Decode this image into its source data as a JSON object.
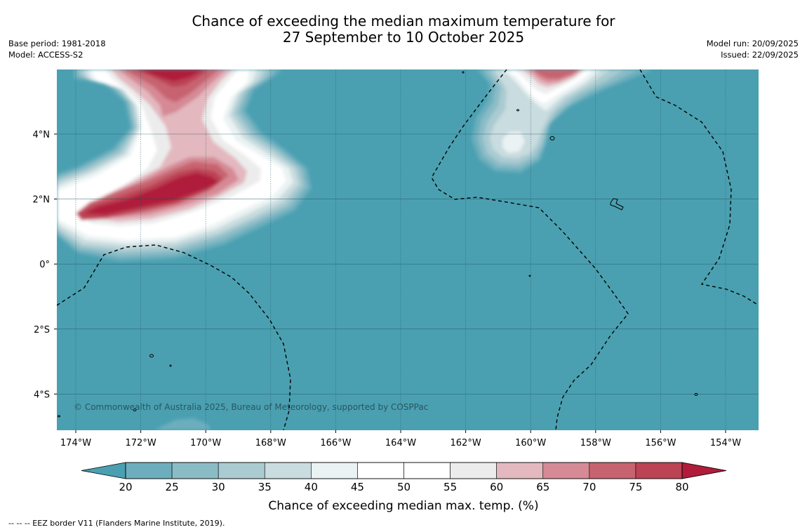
{
  "title": {
    "line1": "Chance of exceeding the median maximum temperature for",
    "line2": "27 September to 10 October 2025"
  },
  "meta_left": [
    "Base period: 1981-2018",
    "Model: ACCESS-S2"
  ],
  "meta_right": [
    "Model run: 20/09/2025",
    "Issued: 22/09/2025"
  ],
  "map": {
    "background_color": "#4aa0b1",
    "lon_ticks": [
      "174°W",
      "172°W",
      "170°W",
      "168°W",
      "166°W",
      "164°W",
      "162°W",
      "160°W",
      "158°W",
      "156°W",
      "154°W"
    ],
    "lat_ticks": [
      "4°N",
      "2°N",
      "0°",
      "2°S",
      "4°S"
    ],
    "credit": "© Commonwealth of Australia 2025, Bureau of Meteorology, supported by COSPPac"
  },
  "colorbar": {
    "ticks": [
      "20",
      "25",
      "30",
      "35",
      "40",
      "45",
      "50",
      "55",
      "60",
      "65",
      "70",
      "75",
      "80"
    ],
    "colors": [
      "#4aa0b1",
      "#6caebd",
      "#8abcc6",
      "#a9cbd1",
      "#c9dcdf",
      "#eaf2f3",
      "#ffffff",
      "#ffffff",
      "#ececec",
      "#e3b8bf",
      "#d58a95",
      "#c7636f",
      "#bb4354",
      "#b01c3a"
    ],
    "label": "Chance of exceeding median max. temp. (%)"
  },
  "footnote": "--  --  -- EEZ border V11 (Flanders Marine Institute, 2019)."
}
